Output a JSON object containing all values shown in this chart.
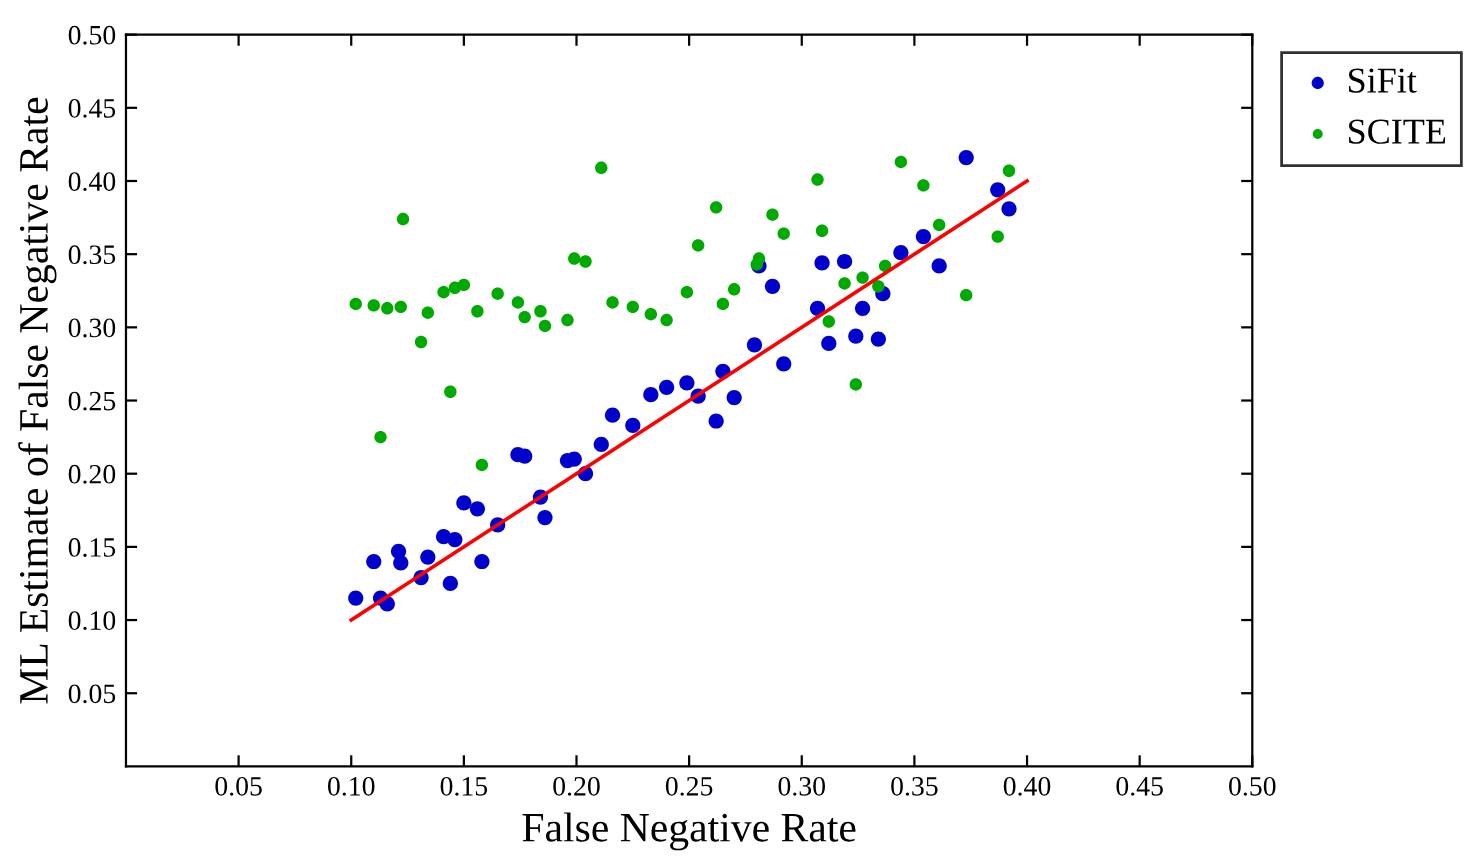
{
  "chart_data": {
    "type": "scatter",
    "xlabel": "False Negative Rate",
    "ylabel": "ML Estimate of False Negative Rate",
    "xlim": [
      0,
      0.5
    ],
    "ylim": [
      0,
      0.5
    ],
    "xticks": [
      {
        "value": 0.05,
        "label": "0.05"
      },
      {
        "value": 0.1,
        "label": "0.10"
      },
      {
        "value": 0.15,
        "label": "0.15"
      },
      {
        "value": 0.2,
        "label": "0.20"
      },
      {
        "value": 0.25,
        "label": "0.25"
      },
      {
        "value": 0.3,
        "label": "0.30"
      },
      {
        "value": 0.35,
        "label": "0.35"
      },
      {
        "value": 0.4,
        "label": "0.40"
      },
      {
        "value": 0.45,
        "label": "0.45"
      },
      {
        "value": 0.5,
        "label": "0.50"
      }
    ],
    "yticks": [
      {
        "value": 0.05,
        "label": "0.05"
      },
      {
        "value": 0.1,
        "label": "0.10"
      },
      {
        "value": 0.15,
        "label": "0.15"
      },
      {
        "value": 0.2,
        "label": "0.20"
      },
      {
        "value": 0.25,
        "label": "0.25"
      },
      {
        "value": 0.3,
        "label": "0.30"
      },
      {
        "value": 0.35,
        "label": "0.35"
      },
      {
        "value": 0.4,
        "label": "0.40"
      },
      {
        "value": 0.45,
        "label": "0.45"
      },
      {
        "value": 0.5,
        "label": "0.50"
      }
    ],
    "grid": false,
    "legend": "top right",
    "marker": "circle",
    "series": [
      {
        "name": "SiFit",
        "color": "#0000cc",
        "x": [
          0.102,
          0.11,
          0.113,
          0.116,
          0.121,
          0.122,
          0.131,
          0.134,
          0.141,
          0.144,
          0.146,
          0.15,
          0.156,
          0.158,
          0.165,
          0.174,
          0.177,
          0.184,
          0.186,
          0.196,
          0.199,
          0.204,
          0.211,
          0.216,
          0.225,
          0.233,
          0.24,
          0.249,
          0.254,
          0.262,
          0.265,
          0.27,
          0.279,
          0.281,
          0.287,
          0.292,
          0.307,
          0.309,
          0.312,
          0.319,
          0.324,
          0.327,
          0.334,
          0.336,
          0.344,
          0.354,
          0.361,
          0.373,
          0.387,
          0.392
        ],
        "values": [
          0.115,
          0.14,
          0.115,
          0.111,
          0.147,
          0.139,
          0.129,
          0.143,
          0.157,
          0.125,
          0.155,
          0.18,
          0.176,
          0.14,
          0.165,
          0.213,
          0.212,
          0.184,
          0.17,
          0.209,
          0.21,
          0.2,
          0.22,
          0.24,
          0.233,
          0.254,
          0.259,
          0.262,
          0.253,
          0.236,
          0.27,
          0.252,
          0.288,
          0.342,
          0.328,
          0.275,
          0.313,
          0.344,
          0.289,
          0.345,
          0.294,
          0.313,
          0.292,
          0.323,
          0.351,
          0.362,
          0.342,
          0.416,
          0.394,
          0.381
        ]
      },
      {
        "name": "SCITE",
        "color": "#00aa00",
        "x": [
          0.102,
          0.11,
          0.113,
          0.116,
          0.122,
          0.123,
          0.131,
          0.134,
          0.141,
          0.144,
          0.146,
          0.15,
          0.156,
          0.158,
          0.165,
          0.174,
          0.177,
          0.184,
          0.186,
          0.196,
          0.199,
          0.204,
          0.211,
          0.216,
          0.225,
          0.233,
          0.24,
          0.249,
          0.254,
          0.262,
          0.265,
          0.27,
          0.28,
          0.281,
          0.287,
          0.292,
          0.307,
          0.309,
          0.312,
          0.319,
          0.324,
          0.327,
          0.334,
          0.337,
          0.344,
          0.354,
          0.361,
          0.373,
          0.387,
          0.392
        ],
        "values": [
          0.316,
          0.315,
          0.225,
          0.313,
          0.314,
          0.374,
          0.29,
          0.31,
          0.324,
          0.256,
          0.327,
          0.329,
          0.311,
          0.206,
          0.323,
          0.317,
          0.307,
          0.311,
          0.301,
          0.305,
          0.347,
          0.345,
          0.409,
          0.317,
          0.314,
          0.309,
          0.305,
          0.324,
          0.356,
          0.382,
          0.316,
          0.326,
          0.343,
          0.347,
          0.377,
          0.364,
          0.401,
          0.366,
          0.304,
          0.33,
          0.261,
          0.334,
          0.328,
          0.342,
          0.413,
          0.397,
          0.37,
          0.322,
          0.362,
          0.407
        ]
      },
      {
        "color": "#ff0000",
        "type": "line",
        "marker": "none",
        "x": [
          0.1,
          0.4
        ],
        "values": [
          0.1,
          0.4
        ]
      }
    ]
  }
}
